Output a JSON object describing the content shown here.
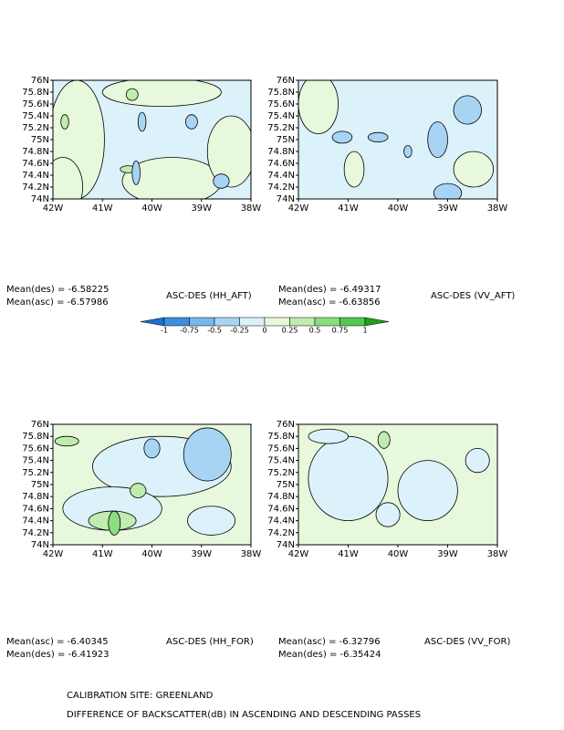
{
  "chart_data": {
    "type": "contour",
    "panels": [
      {
        "label": "ASC-DES (HH_AFT)",
        "stats": [
          "Mean(des) = -6.58225",
          "Mean(asc) = -6.57986"
        ],
        "xlim": [
          -42,
          -38
        ],
        "ylim": [
          74,
          76
        ],
        "xticks": [
          {
            "value": -42,
            "label": "42W"
          },
          {
            "value": -41,
            "label": "41W"
          },
          {
            "value": -40,
            "label": "40W"
          },
          {
            "value": -39,
            "label": "39W"
          },
          {
            "value": -38,
            "label": "38W"
          }
        ],
        "yticks": [
          {
            "value": 74,
            "label": "74N"
          },
          {
            "value": 74.2,
            "label": "74.2N"
          },
          {
            "value": 74.4,
            "label": "74.4N"
          },
          {
            "value": 74.6,
            "label": "74.6N"
          },
          {
            "value": 74.8,
            "label": "74.8N"
          },
          {
            "value": 75,
            "label": "75N"
          },
          {
            "value": 75.2,
            "label": "75.2N"
          },
          {
            "value": 75.4,
            "label": "75.4N"
          },
          {
            "value": 75.6,
            "label": "75.6N"
          },
          {
            "value": 75.8,
            "label": "75.8N"
          },
          {
            "value": 76,
            "label": "76N"
          }
        ]
      },
      {
        "label": "ASC-DES (VV_AFT)",
        "stats": [
          "Mean(des) = -6.49317",
          "Mean(asc) = -6.63856"
        ],
        "xlim": [
          -42,
          -38
        ],
        "ylim": [
          74,
          76
        ],
        "xticks": [
          {
            "value": -42,
            "label": "42W"
          },
          {
            "value": -41,
            "label": "41W"
          },
          {
            "value": -40,
            "label": "40W"
          },
          {
            "value": -39,
            "label": "39W"
          },
          {
            "value": -38,
            "label": "38W"
          }
        ],
        "yticks": [
          {
            "value": 74,
            "label": "74N"
          },
          {
            "value": 74.2,
            "label": "74.2N"
          },
          {
            "value": 74.4,
            "label": "74.4N"
          },
          {
            "value": 74.6,
            "label": "74.6N"
          },
          {
            "value": 74.8,
            "label": "74.8N"
          },
          {
            "value": 75,
            "label": "75N"
          },
          {
            "value": 75.2,
            "label": "75.2N"
          },
          {
            "value": 75.4,
            "label": "75.4N"
          },
          {
            "value": 75.6,
            "label": "75.6N"
          },
          {
            "value": 75.8,
            "label": "75.8N"
          },
          {
            "value": 76,
            "label": "76N"
          }
        ]
      },
      {
        "label": "ASC-DES (HH_FOR)",
        "stats": [
          "Mean(asc) = -6.40345",
          "Mean(des) = -6.41923"
        ],
        "xlim": [
          -42,
          -38
        ],
        "ylim": [
          74,
          76
        ],
        "xticks": [
          {
            "value": -42,
            "label": "42W"
          },
          {
            "value": -41,
            "label": "41W"
          },
          {
            "value": -40,
            "label": "40W"
          },
          {
            "value": -39,
            "label": "39W"
          },
          {
            "value": -38,
            "label": "38W"
          }
        ],
        "yticks": [
          {
            "value": 74,
            "label": "74N"
          },
          {
            "value": 74.2,
            "label": "74.2N"
          },
          {
            "value": 74.4,
            "label": "74.4N"
          },
          {
            "value": 74.6,
            "label": "74.6N"
          },
          {
            "value": 74.8,
            "label": "74.8N"
          },
          {
            "value": 75,
            "label": "75N"
          },
          {
            "value": 75.2,
            "label": "75.2N"
          },
          {
            "value": 75.4,
            "label": "75.4N"
          },
          {
            "value": 75.6,
            "label": "75.6N"
          },
          {
            "value": 75.8,
            "label": "75.8N"
          },
          {
            "value": 76,
            "label": "76N"
          }
        ]
      },
      {
        "label": "ASC-DES (VV_FOR)",
        "stats": [
          "Mean(asc) = -6.32796",
          "Mean(des) = -6.35424"
        ],
        "xlim": [
          -42,
          -38
        ],
        "ylim": [
          74,
          76
        ],
        "xticks": [
          {
            "value": -42,
            "label": "42W"
          },
          {
            "value": -41,
            "label": "41W"
          },
          {
            "value": -40,
            "label": "40W"
          },
          {
            "value": -39,
            "label": "39W"
          },
          {
            "value": -38,
            "label": "38W"
          }
        ],
        "yticks": [
          {
            "value": 74,
            "label": "74N"
          },
          {
            "value": 74.2,
            "label": "74.2N"
          },
          {
            "value": 74.4,
            "label": "74.4N"
          },
          {
            "value": 74.6,
            "label": "74.6N"
          },
          {
            "value": 74.8,
            "label": "74.8N"
          },
          {
            "value": 75,
            "label": "75N"
          },
          {
            "value": 75.2,
            "label": "75.2N"
          },
          {
            "value": 75.4,
            "label": "75.4N"
          },
          {
            "value": 75.6,
            "label": "75.6N"
          },
          {
            "value": 75.8,
            "label": "75.8N"
          },
          {
            "value": 76,
            "label": "76N"
          }
        ]
      }
    ],
    "colorbar": {
      "levels": [
        -1,
        -0.75,
        -0.5,
        -0.25,
        0,
        0.25,
        0.5,
        0.75,
        1
      ],
      "colors": [
        "#1e6ed2",
        "#3c8fe0",
        "#78b6ee",
        "#a8d4f4",
        "#dcf2fa",
        "#e8f8dc",
        "#c0ecb0",
        "#8cdc80",
        "#50c850",
        "#1ea01e"
      ]
    },
    "captions": [
      "CALIBRATION SITE: GREENLAND",
      "DIFFERENCE OF BACKSCATTER(dB) IN ASCENDING AND DESCENDING PASSES"
    ]
  }
}
